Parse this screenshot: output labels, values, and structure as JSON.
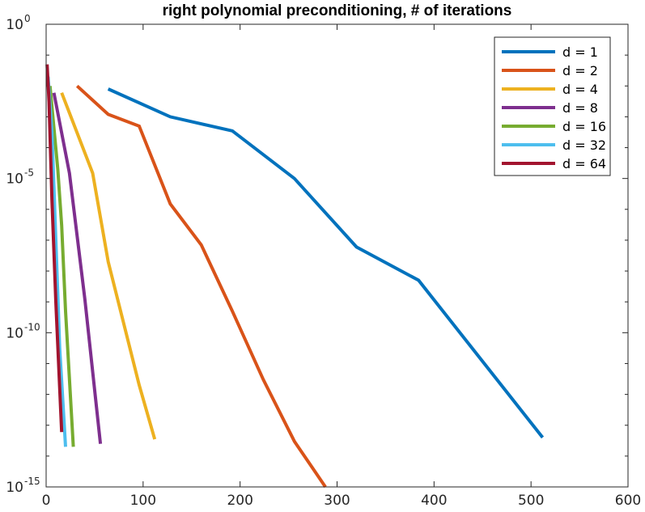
{
  "chart_data": {
    "type": "line",
    "title": "right polynomial preconditioning, # of iterations",
    "xlabel": "",
    "ylabel": "",
    "xscale": "linear",
    "yscale": "log",
    "xlim": [
      0,
      600
    ],
    "ylim": [
      1e-15,
      1
    ],
    "xticks": [
      0,
      100,
      200,
      300,
      400,
      500,
      600
    ],
    "xtick_labels": [
      "0",
      "100",
      "200",
      "300",
      "400",
      "500",
      "600"
    ],
    "yticks": [
      {
        "value": 1,
        "base": "10",
        "exp": "0"
      },
      {
        "value": 1e-05,
        "base": "10",
        "exp": "-5"
      },
      {
        "value": 1e-10,
        "base": "10",
        "exp": "-10"
      },
      {
        "value": 1e-15,
        "base": "10",
        "exp": "-15"
      }
    ],
    "legend_position": "top-right",
    "series": [
      {
        "name": "d = 1",
        "color": "#0072BD",
        "x": [
          64,
          128,
          192,
          256,
          320,
          384,
          512
        ],
        "y": [
          0.008,
          0.001,
          0.00035,
          1e-05,
          6e-08,
          5e-09,
          4e-14
        ]
      },
      {
        "name": "d = 2",
        "color": "#D95319",
        "x": [
          32,
          64,
          96,
          128,
          160,
          192,
          224,
          256,
          288
        ],
        "y": [
          0.01,
          0.0012,
          0.0005,
          1.5e-06,
          7e-08,
          5e-10,
          3e-12,
          3e-14,
          1e-15
        ]
      },
      {
        "name": "d = 4",
        "color": "#EDB120",
        "x": [
          16,
          48,
          64,
          96,
          112
        ],
        "y": [
          0.006,
          1.5e-05,
          2e-08,
          2e-12,
          3.5e-14
        ]
      },
      {
        "name": "d = 8",
        "color": "#7E2F8E",
        "x": [
          8,
          24,
          40,
          56
        ],
        "y": [
          0.006,
          1.5e-05,
          1.2e-09,
          2.5e-14
        ]
      },
      {
        "name": "d = 16",
        "color": "#77AC30",
        "x": [
          4,
          12,
          16,
          20,
          28
        ],
        "y": [
          0.01,
          2e-05,
          3e-07,
          5e-10,
          2e-14
        ]
      },
      {
        "name": "d = 32",
        "color": "#4DBEEE",
        "x": [
          2,
          6,
          10,
          14,
          20
        ],
        "y": [
          0.02,
          0.0003,
          1e-07,
          3e-11,
          2e-14
        ]
      },
      {
        "name": "d = 64",
        "color": "#A2142F",
        "x": [
          1,
          3,
          6,
          10,
          16
        ],
        "y": [
          0.05,
          0.003,
          2e-06,
          1e-09,
          6e-14
        ]
      }
    ]
  }
}
